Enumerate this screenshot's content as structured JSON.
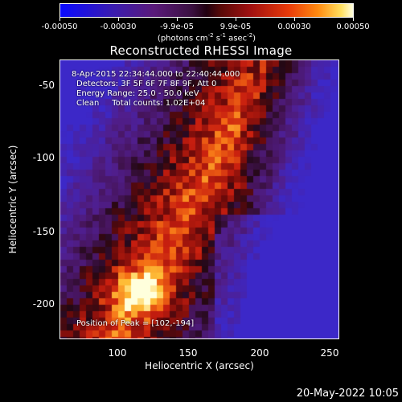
{
  "colorbar": {
    "tick_labels": [
      "-0.00050",
      "-0.00030",
      "-9.9e-05",
      "9.9e-05",
      "0.00030",
      "0.00050"
    ],
    "units_text": "(photons cm",
    "units_sup1": "-2",
    "units_mid": " s",
    "units_sup2": "-1",
    "units_end": " asec",
    "units_sup3": "-2",
    "units_close": ")"
  },
  "image_title": "Reconstructed RHESSI Image",
  "annotations": {
    "time_range": "8-Apr-2015 22:34:44.000 to 22:40:44.000",
    "detectors": "Detectors: 3F 5F 6F 7F 8F 9F, Att 0",
    "energy": "Energy Range: 25.0 - 50.0 keV",
    "clean": "Clean     Total counts: 1.02E+04",
    "peak": "Position of Peak = [102,-194]"
  },
  "axes": {
    "xlabel": "Heliocentric X (arcsec)",
    "ylabel": "Heliocentric Y (arcsec)",
    "x_ticks": [
      "100",
      "150",
      "200",
      "250"
    ],
    "y_ticks": [
      "-50",
      "-100",
      "-150",
      "-200"
    ]
  },
  "timestamp": "20-May-2022 10:05",
  "colors": {
    "background": "#000000",
    "foreground": "#ffffff"
  }
}
